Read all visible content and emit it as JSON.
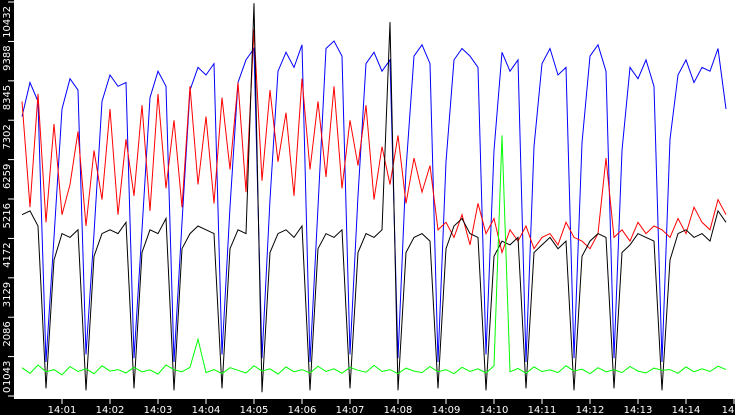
{
  "chart_data": {
    "type": "line",
    "title": "",
    "xlabel": "",
    "ylabel": "",
    "ylim": [
      0,
      10432
    ],
    "grid": false,
    "legend": "none",
    "background": "#ffffff",
    "axis_background": "#000000",
    "y_ticks": [
      "0",
      "1043",
      "2086",
      "3129",
      "4172",
      "5216",
      "6259",
      "7302",
      "8345",
      "9388",
      "10432"
    ],
    "x_ticks": [
      "14:01",
      "14:02",
      "14:03",
      "14:04",
      "14:05",
      "14:06",
      "14:07",
      "14:08",
      "14:09",
      "14:10",
      "14:11",
      "14:12",
      "14:13",
      "14:14",
      "14"
    ],
    "x": [
      "14:00:10",
      "14:00:20",
      "14:00:30",
      "14:00:40",
      "14:00:50",
      "14:01:00",
      "14:01:10",
      "14:01:20",
      "14:01:30",
      "14:01:40",
      "14:01:50",
      "14:02:00",
      "14:02:10",
      "14:02:20",
      "14:02:30",
      "14:02:40",
      "14:02:50",
      "14:03:00",
      "14:03:10",
      "14:03:20",
      "14:03:30",
      "14:03:40",
      "14:03:50",
      "14:04:00",
      "14:04:10",
      "14:04:20",
      "14:04:30",
      "14:04:40",
      "14:04:50",
      "14:05:00",
      "14:05:10",
      "14:05:20",
      "14:05:30",
      "14:05:40",
      "14:05:50",
      "14:06:00",
      "14:06:10",
      "14:06:20",
      "14:06:30",
      "14:06:40",
      "14:06:50",
      "14:07:00",
      "14:07:10",
      "14:07:20",
      "14:07:30",
      "14:07:40",
      "14:07:50",
      "14:08:00",
      "14:08:10",
      "14:08:20",
      "14:08:30",
      "14:08:40",
      "14:08:50",
      "14:09:00",
      "14:09:10",
      "14:09:20",
      "14:09:30",
      "14:09:40",
      "14:09:50",
      "14:10:00",
      "14:10:10",
      "14:10:20",
      "14:10:30",
      "14:10:40",
      "14:10:50",
      "14:11:00",
      "14:11:10",
      "14:11:20",
      "14:11:30",
      "14:11:40",
      "14:11:50",
      "14:12:00",
      "14:12:10",
      "14:12:20",
      "14:12:30",
      "14:12:40",
      "14:12:50",
      "14:13:00",
      "14:13:10",
      "14:13:20",
      "14:13:30",
      "14:13:40",
      "14:13:50",
      "14:14:00",
      "14:14:10",
      "14:14:20",
      "14:14:30",
      "14:14:40",
      "14:14:50"
    ],
    "series": [
      {
        "color": "#0000ff",
        "values": [
          7400,
          8300,
          7800,
          900,
          4200,
          7600,
          8400,
          8100,
          1100,
          4300,
          7800,
          8500,
          8200,
          8300,
          1000,
          4400,
          7900,
          8600,
          8200,
          900,
          4600,
          8100,
          8700,
          8500,
          8800,
          1100,
          5000,
          8300,
          8900,
          9200,
          1000,
          5200,
          8600,
          9100,
          8700,
          9300,
          900,
          5000,
          9200,
          9400,
          9000,
          1100,
          5300,
          8800,
          9100,
          8600,
          8900,
          1000,
          6000,
          9000,
          9300,
          8800,
          900,
          6200,
          8900,
          9200,
          9000,
          8700,
          1100,
          6500,
          9100,
          8600,
          8900,
          900,
          6600,
          8800,
          9200,
          8500,
          8700,
          1000,
          6700,
          9000,
          9300,
          8600,
          1000,
          6500,
          8700,
          8400,
          8900,
          8200,
          900,
          6800,
          8500,
          8900,
          8300,
          8700,
          8600,
          9200,
          7600
        ]
      },
      {
        "color": "#ff0000",
        "values": [
          7800,
          5000,
          8000,
          4600,
          7200,
          4800,
          5600,
          7000,
          4500,
          6500,
          5200,
          7600,
          4800,
          6800,
          5300,
          7700,
          4900,
          8000,
          5500,
          7300,
          5000,
          8200,
          5600,
          7400,
          5100,
          7900,
          6000,
          8300,
          5400,
          9700,
          5700,
          8100,
          6200,
          7500,
          5300,
          8400,
          6000,
          7800,
          5800,
          8200,
          5500,
          7300,
          6100,
          7700,
          5200,
          6600,
          5600,
          6900,
          5100,
          6300,
          5400,
          6100,
          4400,
          4600,
          4200,
          4800,
          4000,
          5100,
          4300,
          4700,
          3800,
          4400,
          4100,
          4500,
          3900,
          4200,
          4300,
          4000,
          4600,
          4200,
          4100,
          3900,
          4300,
          6300,
          4200,
          4400,
          4100,
          4600,
          4300,
          4500,
          4400,
          4200,
          4700,
          4300,
          5000,
          4600,
          4400,
          5200,
          4800
        ]
      },
      {
        "color": "#000000",
        "values": [
          4800,
          4900,
          4500,
          200,
          3600,
          4300,
          4200,
          4400,
          150,
          3700,
          4300,
          4400,
          4300,
          4600,
          200,
          3800,
          4400,
          4300,
          4700,
          150,
          3900,
          4300,
          4500,
          4400,
          4300,
          200,
          3900,
          4400,
          4300,
          10400,
          100,
          3800,
          4300,
          4400,
          4200,
          4500,
          150,
          3900,
          4300,
          4200,
          4400,
          200,
          3800,
          4300,
          4200,
          4400,
          9900,
          150,
          3800,
          4200,
          4300,
          4100,
          200,
          3900,
          4500,
          4700,
          4300,
          4200,
          150,
          3700,
          4100,
          4000,
          4200,
          200,
          3800,
          4000,
          4200,
          3900,
          4100,
          150,
          3700,
          4100,
          4300,
          4200,
          200,
          3800,
          4000,
          4300,
          4200,
          4100,
          150,
          3600,
          4300,
          4400,
          4200,
          4300,
          4100,
          4900,
          4600
        ]
      },
      {
        "color": "#00ff00",
        "values": [
          750,
          600,
          820,
          640,
          700,
          560,
          780,
          650,
          720,
          590,
          800,
          660,
          700,
          610,
          760,
          640,
          690,
          580,
          820,
          700,
          640,
          760,
          1500,
          620,
          700,
          590,
          750,
          680,
          610,
          800,
          660,
          720,
          580,
          770,
          640,
          700,
          610,
          790,
          650,
          720,
          600,
          760,
          680,
          630,
          810,
          650,
          700,
          590,
          740,
          660,
          620,
          780,
          640,
          700,
          590,
          760,
          650,
          720,
          610,
          800,
          6900,
          640,
          730,
          600,
          770,
          650,
          690,
          620,
          800,
          660,
          710,
          590,
          750,
          640,
          700,
          620,
          780,
          660,
          610,
          740,
          680,
          700,
          600,
          770,
          640,
          720,
          650,
          790,
          700
        ]
      }
    ]
  }
}
